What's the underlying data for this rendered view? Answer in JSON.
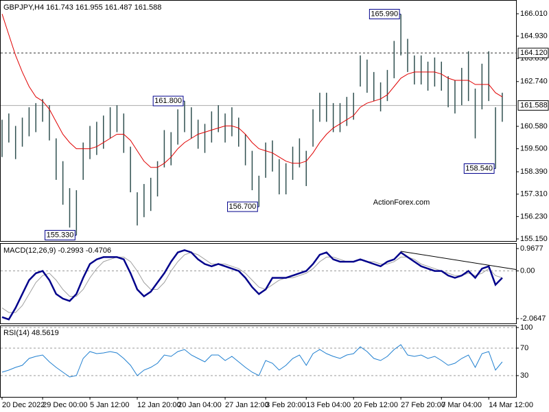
{
  "chart_data": [
    {
      "type": "ohlc",
      "title": "GBPJPY,H4  161.743 161.955 161.487 161.588",
      "bar_color": "#2f4f4f",
      "high": [
        160.9,
        161.2,
        160.6,
        161.0,
        161.5,
        161.7,
        161.9,
        161.6,
        160.0,
        158.9,
        157.6,
        157.5,
        159.8,
        160.6,
        160.8,
        161.1,
        161.5,
        161.6,
        161.2,
        159.6,
        157.4,
        157.8,
        158.1,
        158.9,
        160.4,
        160.3,
        161.4,
        161.8,
        161.5,
        160.9,
        160.7,
        161.3,
        161.6,
        161.2,
        161.5,
        161.0,
        160.2,
        159.4,
        158.2,
        159.8,
        159.9,
        159.0,
        158.8,
        159.6,
        160.0,
        159.4,
        161.4,
        162.2,
        162.2,
        161.7,
        161.7,
        162.0,
        162.2,
        164.0,
        163.8,
        163.2,
        162.7,
        163.3,
        164.7,
        165.99,
        164.8,
        164.0,
        164.0,
        163.7,
        163.9,
        163.7,
        163.0,
        162.8,
        163.4,
        164.2,
        162.4,
        163.6,
        164.2,
        161.5,
        162.2
      ],
      "low": [
        159.1,
        159.8,
        159.0,
        159.6,
        160.1,
        160.3,
        160.8,
        159.9,
        158.0,
        156.8,
        155.7,
        155.33,
        158.0,
        159.0,
        159.2,
        159.5,
        160.0,
        160.3,
        159.3,
        157.4,
        155.8,
        156.2,
        156.5,
        157.2,
        158.6,
        158.7,
        159.7,
        160.3,
        160.0,
        159.5,
        159.3,
        159.8,
        160.3,
        159.8,
        160.1,
        159.6,
        158.7,
        157.5,
        156.7,
        158.1,
        158.4,
        157.3,
        157.3,
        158.0,
        158.6,
        157.7,
        159.6,
        160.8,
        160.8,
        160.3,
        160.3,
        160.6,
        160.9,
        162.5,
        162.2,
        161.8,
        161.3,
        161.8,
        162.9,
        164.0,
        163.2,
        162.6,
        162.6,
        162.3,
        162.5,
        162.3,
        161.5,
        161.2,
        161.6,
        161.8,
        160.0,
        161.4,
        161.8,
        158.54,
        160.8
      ],
      "ma": {
        "color": "#e00000",
        "values": [
          166.0,
          165.0,
          164.0,
          163.2,
          162.5,
          162.0,
          161.8,
          161.4,
          160.8,
          160.2,
          159.8,
          159.5,
          159.5,
          159.5,
          159.6,
          159.8,
          160.0,
          160.2,
          160.2,
          159.9,
          159.4,
          158.9,
          158.6,
          158.6,
          158.8,
          159.1,
          159.5,
          159.8,
          160.0,
          160.2,
          160.3,
          160.4,
          160.5,
          160.6,
          160.6,
          160.5,
          160.2,
          159.8,
          159.5,
          159.4,
          159.3,
          159.1,
          158.9,
          158.8,
          158.8,
          158.9,
          159.3,
          159.8,
          160.2,
          160.5,
          160.7,
          160.9,
          161.1,
          161.5,
          161.7,
          161.8,
          161.9,
          162.1,
          162.5,
          162.9,
          163.1,
          163.2,
          163.2,
          163.2,
          163.2,
          163.1,
          162.9,
          162.8,
          162.8,
          162.8,
          162.6,
          162.6,
          162.6,
          162.2,
          162.0
        ]
      },
      "ylim": [
        155.05,
        166.64
      ],
      "yticks": [
        {
          "value": 166.01,
          "label": "166.010"
        },
        {
          "value": 164.93,
          "label": "164.930"
        },
        {
          "value": 163.85,
          "label": "163.850"
        },
        {
          "value": 162.74,
          "label": "162.740"
        },
        {
          "value": 160.58,
          "label": "160.580"
        },
        {
          "value": 159.5,
          "label": "159.500"
        },
        {
          "value": 158.39,
          "label": "158.390"
        },
        {
          "value": 157.31,
          "label": "157.310"
        },
        {
          "value": 156.23,
          "label": "156.230"
        },
        {
          "value": 155.15,
          "label": "155.150"
        }
      ],
      "levels": [
        {
          "value": 164.12,
          "label": "164.120",
          "style": "dashed"
        },
        {
          "value": 161.588,
          "label": "161.588",
          "style": "solid"
        }
      ],
      "annotations": [
        {
          "value": 165.99,
          "label": "165.990"
        },
        {
          "value": 161.8,
          "label": "161.800"
        },
        {
          "value": 156.7,
          "label": "156.700"
        },
        {
          "value": 155.33,
          "label": "155.330"
        },
        {
          "value": 158.54,
          "label": "158.540"
        }
      ],
      "watermark": "ActionForex.com"
    },
    {
      "type": "line",
      "title": "MACD(12,26,9) -0.2993 -0.4706",
      "series": [
        {
          "color": "#a0a0a0",
          "values": [
            -1.6,
            -1.8,
            -1.8,
            -1.5,
            -1.0,
            -0.5,
            -0.2,
            -0.1,
            -0.4,
            -0.8,
            -1.1,
            -1.1,
            -0.8,
            -0.3,
            0.1,
            0.4,
            0.5,
            0.6,
            0.6,
            0.4,
            0.0,
            -0.5,
            -0.8,
            -0.8,
            -0.5,
            0.0,
            0.4,
            0.7,
            0.8,
            0.7,
            0.5,
            0.3,
            0.3,
            0.3,
            0.2,
            0.1,
            -0.1,
            -0.4,
            -0.7,
            -0.8,
            -0.6,
            -0.4,
            -0.3,
            -0.3,
            -0.2,
            -0.1,
            0.1,
            0.4,
            0.6,
            0.6,
            0.5,
            0.4,
            0.4,
            0.5,
            0.4,
            0.4,
            0.3,
            0.3,
            0.4,
            0.6,
            0.6,
            0.5,
            0.3,
            0.2,
            0.1,
            0.0,
            -0.1,
            -0.2,
            -0.2,
            -0.1,
            -0.2,
            -0.1,
            0.1,
            -0.2,
            -0.3
          ]
        },
        {
          "color": "#00008b",
          "values": [
            -2.0,
            -2.1,
            -1.6,
            -1.0,
            -0.4,
            -0.1,
            0.0,
            -0.4,
            -1.0,
            -1.2,
            -1.3,
            -1.0,
            -0.3,
            0.3,
            0.5,
            0.6,
            0.6,
            0.6,
            0.5,
            -0.1,
            -0.8,
            -1.1,
            -0.9,
            -0.5,
            -0.1,
            0.4,
            0.8,
            0.9,
            0.8,
            0.5,
            0.3,
            0.2,
            0.3,
            0.2,
            0.1,
            0.0,
            -0.3,
            -0.7,
            -1.0,
            -0.8,
            -0.3,
            -0.3,
            -0.3,
            -0.2,
            -0.1,
            0.0,
            0.3,
            0.7,
            0.8,
            0.5,
            0.4,
            0.4,
            0.4,
            0.5,
            0.4,
            0.3,
            0.2,
            0.4,
            0.5,
            0.8,
            0.6,
            0.4,
            0.2,
            0.1,
            0.0,
            0.0,
            -0.2,
            -0.3,
            -0.2,
            0.0,
            -0.3,
            0.1,
            0.2,
            -0.6,
            -0.3
          ]
        }
      ],
      "trend_line": [
        0.85,
        0.06
      ],
      "ylim": [
        -2.273,
        1.176
      ],
      "yticks": [
        0.9677,
        {
          "value": 0,
          "label": "0.00"
        },
        -2.0647
      ],
      "zero_line": true
    },
    {
      "type": "line",
      "title": "RSI(14) 48.5619",
      "categories": [
        "20 Dec 2022",
        null,
        null,
        null,
        null,
        null,
        "29 Dec 00:00",
        null,
        null,
        null,
        null,
        null,
        null,
        "5 Jan 12:00",
        null,
        null,
        null,
        null,
        null,
        null,
        "12 Jan 20:00",
        null,
        null,
        null,
        null,
        null,
        "20 Jan 04:00",
        null,
        null,
        null,
        null,
        null,
        null,
        "27 Jan 12:00",
        null,
        null,
        null,
        null,
        null,
        "3 Feb 20:00",
        null,
        null,
        null,
        null,
        null,
        "13 Feb 04:00",
        null,
        null,
        null,
        null,
        null,
        null,
        "20 Feb 12:00",
        null,
        null,
        null,
        null,
        null,
        null,
        "27 Feb 20:00",
        null,
        null,
        null,
        null,
        null,
        "7 Mar 04:00",
        null,
        null,
        null,
        null,
        null,
        null,
        "14 Mar 12:00",
        null,
        null
      ],
      "series": [
        {
          "color": "#1f7fd0",
          "values": [
            35,
            38,
            42,
            45,
            55,
            58,
            60,
            50,
            42,
            35,
            28,
            30,
            55,
            65,
            62,
            63,
            65,
            63,
            55,
            45,
            30,
            38,
            42,
            48,
            60,
            58,
            65,
            68,
            60,
            55,
            50,
            60,
            60,
            52,
            58,
            50,
            42,
            35,
            30,
            52,
            48,
            38,
            45,
            55,
            60,
            45,
            62,
            68,
            62,
            58,
            55,
            60,
            62,
            72,
            65,
            55,
            52,
            58,
            68,
            75,
            60,
            58,
            60,
            55,
            58,
            52,
            45,
            48,
            55,
            60,
            42,
            62,
            65,
            38,
            50
          ]
        }
      ],
      "ylim": [
        -1,
        102
      ],
      "yticks": [
        100,
        70,
        30
      ],
      "grid": "dashed"
    }
  ]
}
